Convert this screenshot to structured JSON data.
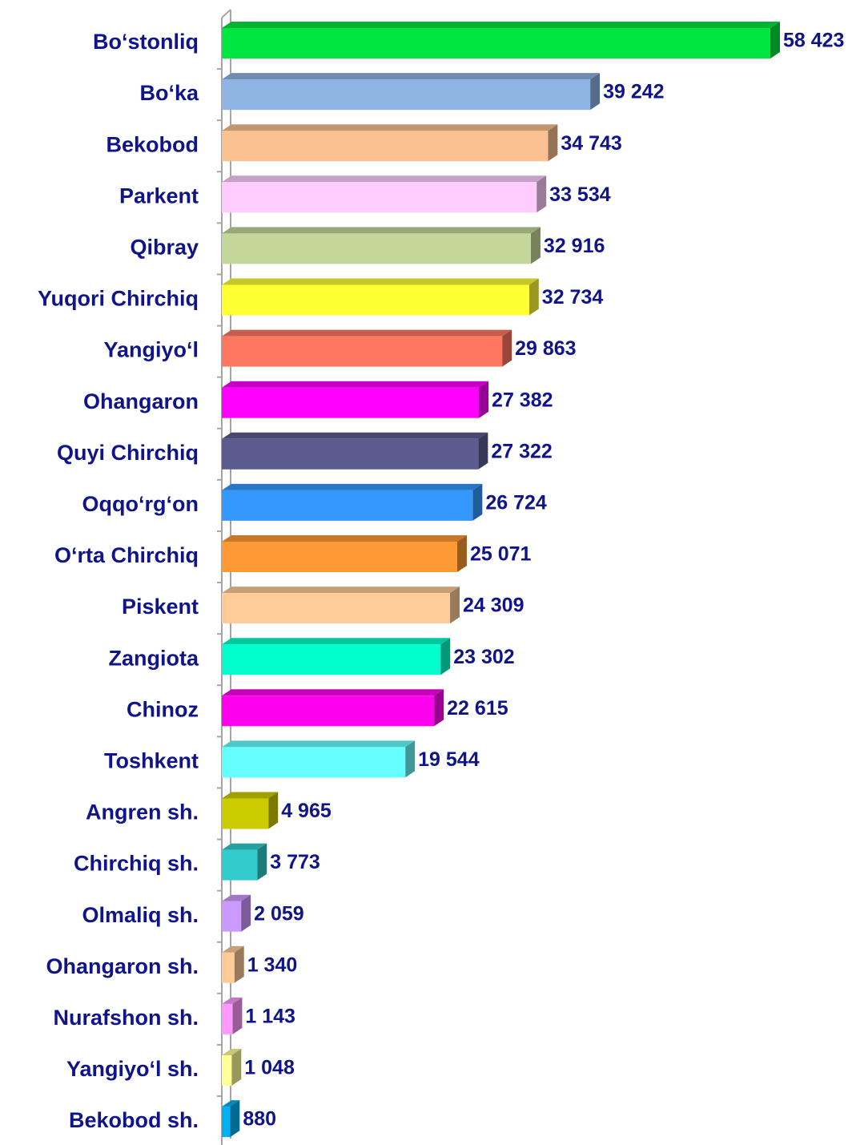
{
  "chart_data": {
    "type": "bar",
    "orientation": "horizontal",
    "categories": [
      "Bo‘stonliq",
      "Bo‘ka",
      "Bekobod",
      "Parkent",
      "Qibray",
      "Yuqori Chirchiq",
      "Yangiyo‘l",
      "Ohangaron",
      "Quyi Chirchiq",
      "Oqqo‘rg‘on",
      "O‘rta Chirchiq",
      "Piskent",
      "Zangiota",
      "Chinoz",
      "Toshkent",
      "Angren sh.",
      "Chirchiq sh.",
      "Olmaliq sh.",
      "Ohangaron sh.",
      "Nurafshon sh.",
      "Yangiyo‘l sh.",
      "Bekobod sh."
    ],
    "values": [
      58423,
      39242,
      34743,
      33534,
      32916,
      32734,
      29863,
      27382,
      27322,
      26724,
      25071,
      24309,
      23302,
      22615,
      19544,
      4965,
      3773,
      2059,
      1340,
      1143,
      1048,
      880
    ],
    "value_labels": [
      "58 423",
      "39 242",
      "34 743",
      "33 534",
      "32 916",
      "32 734",
      "29 863",
      "27 382",
      "27 322",
      "26 724",
      "25 071",
      "24 309",
      "23 302",
      "22 615",
      "19 544",
      "4 965",
      "3 773",
      "2 059",
      "1 340",
      "1 143",
      "1 048",
      "880"
    ],
    "colors": [
      "#00e640",
      "#8fb4e3",
      "#fac090",
      "#ffccff",
      "#c4d79b",
      "#ffff33",
      "#ff7761",
      "#ff00ff",
      "#5b5b8f",
      "#3399ff",
      "#ff9933",
      "#ffcc99",
      "#00ffcc",
      "#ff00ee",
      "#66ffff",
      "#cccc00",
      "#33cccc",
      "#cc99ff",
      "#ffcc99",
      "#ff99ff",
      "#ffff99",
      "#00b0f0"
    ]
  }
}
